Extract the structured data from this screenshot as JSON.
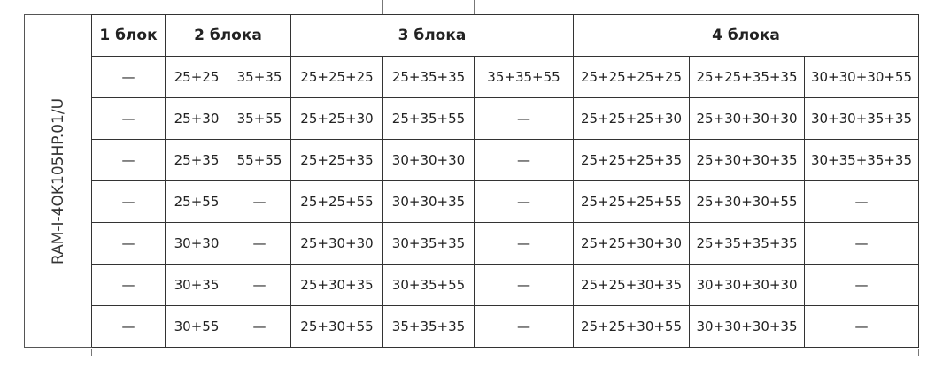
{
  "model": "RAM-I-4OK105HP.01/U",
  "headers": [
    "1 блок",
    "2 блока",
    "3 блока",
    "4 блока"
  ],
  "rows": [
    [
      "—",
      "25+25",
      "35+35",
      "25+25+25",
      "25+35+35",
      "35+35+55",
      "25+25+25+25",
      "25+25+35+35",
      "30+30+30+55"
    ],
    [
      "—",
      "25+30",
      "35+55",
      "25+25+30",
      "25+35+55",
      "—",
      "25+25+25+30",
      "25+30+30+30",
      "30+30+35+35"
    ],
    [
      "—",
      "25+35",
      "55+55",
      "25+25+35",
      "30+30+30",
      "—",
      "25+25+25+35",
      "25+30+30+35",
      "30+35+35+35"
    ],
    [
      "—",
      "25+55",
      "—",
      "25+25+55",
      "30+30+35",
      "—",
      "25+25+25+55",
      "25+30+30+55",
      "—"
    ],
    [
      "—",
      "30+30",
      "—",
      "25+30+30",
      "30+35+35",
      "—",
      "25+25+30+30",
      "25+35+35+35",
      "—"
    ],
    [
      "—",
      "30+35",
      "—",
      "25+30+35",
      "30+35+55",
      "—",
      "25+25+30+35",
      "30+30+30+30",
      "—"
    ],
    [
      "—",
      "30+55",
      "—",
      "25+30+55",
      "35+35+35",
      "—",
      "25+25+30+55",
      "30+30+30+35",
      "—"
    ]
  ]
}
